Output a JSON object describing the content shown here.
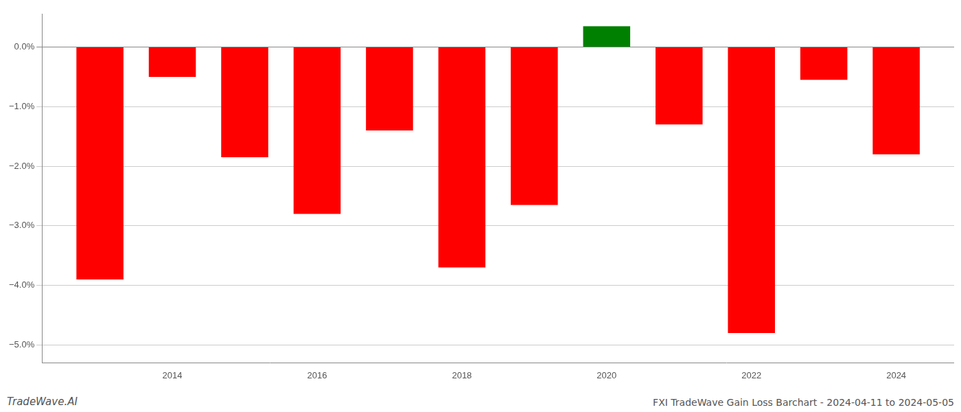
{
  "chart_data": {
    "type": "bar",
    "title": "FXI TradeWave Gain Loss Barchart - 2024-04-11 to 2024-05-05",
    "annotations": [
      "TradeWave.AI"
    ],
    "x": [
      2013,
      2014,
      2015,
      2016,
      2017,
      2018,
      2019,
      2020,
      2021,
      2022,
      2023,
      2024
    ],
    "values": [
      -3.9,
      -0.5,
      -1.85,
      -2.8,
      -1.4,
      -3.7,
      -2.65,
      0.35,
      -1.3,
      -4.8,
      -0.55,
      -1.8
    ],
    "colors": [
      "#ff0000",
      "#ff0000",
      "#ff0000",
      "#ff0000",
      "#ff0000",
      "#ff0000",
      "#ff0000",
      "#008000",
      "#ff0000",
      "#ff0000",
      "#ff0000",
      "#ff0000"
    ],
    "xlim": [
      2012.2,
      2024.8
    ],
    "xticks": [
      2014,
      2016,
      2018,
      2020,
      2022,
      2024
    ],
    "ylim": [
      -5.3,
      0.55
    ],
    "yticks": [
      {
        "value": 0.0,
        "label": "0.0%"
      },
      {
        "value": -1.0,
        "label": "−1.0%"
      },
      {
        "value": -2.0,
        "label": "−2.0%"
      },
      {
        "value": -3.0,
        "label": "−3.0%"
      },
      {
        "value": -4.0,
        "label": "−4.0%"
      },
      {
        "value": -5.0,
        "label": "−5.0%"
      }
    ],
    "grid": true
  }
}
